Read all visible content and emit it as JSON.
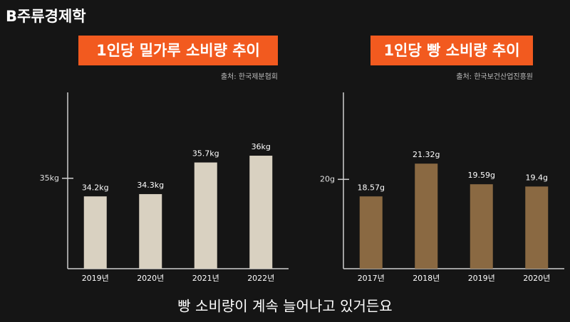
{
  "header": {
    "logo": "B주류경제학"
  },
  "caption": "빵 소비량이 계속 늘어나고 있거든요",
  "chart_data": [
    {
      "type": "bar",
      "title": "1인당 밀가루 소비량 추이",
      "source": "출처: 한국제분협회",
      "categories": [
        "2019년",
        "2020년",
        "2021년",
        "2022년"
      ],
      "values": [
        34.2,
        34.3,
        35.7,
        36
      ],
      "value_labels": [
        "34.2kg",
        "34.3kg",
        "35.7kg",
        "36kg"
      ],
      "color": "#d9d1c1",
      "ylim": [
        31,
        38.8
      ],
      "yticks": [
        {
          "value": 35,
          "label": "35kg"
        }
      ],
      "grid": false
    },
    {
      "type": "bar",
      "title": "1인당 빵 소비량 추이",
      "source": "출처: 한국보건산업진흥원",
      "categories": [
        "2017년",
        "2018년",
        "2019년",
        "2020년"
      ],
      "values": [
        18.57,
        21.32,
        19.59,
        19.4
      ],
      "value_labels": [
        "18.57g",
        "21.32g",
        "19.59g",
        "19.4g"
      ],
      "color": "#8a6942",
      "ylim": [
        12.5,
        27.3
      ],
      "yticks": [
        {
          "value": 20,
          "label": "20g"
        }
      ],
      "grid": false
    }
  ]
}
